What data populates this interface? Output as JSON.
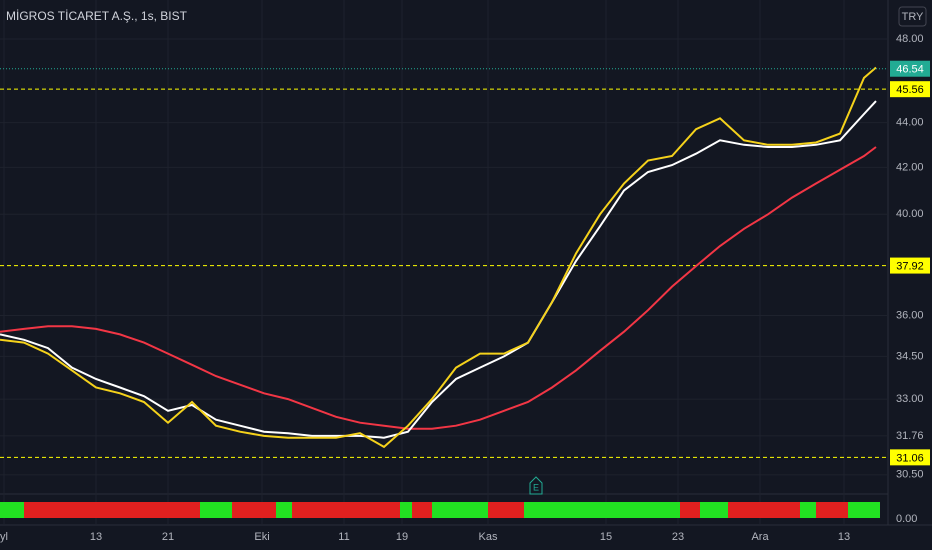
{
  "chart_data": {
    "type": "line",
    "title": "MİGROS TİCARET A.Ş., 1s, BIST",
    "currency": "TRY",
    "log_scale": true,
    "grid": true,
    "x": [
      0,
      6,
      12,
      18,
      24,
      30,
      36,
      42,
      48,
      54,
      60,
      66,
      72,
      78,
      84,
      90,
      96,
      102,
      108,
      114,
      120,
      126,
      132,
      138,
      144,
      150,
      156,
      162,
      168,
      174,
      180,
      186,
      192,
      198,
      204,
      210,
      216,
      219
    ],
    "xlim": [
      0,
      222
    ],
    "xticks": [
      {
        "value": 1,
        "label": "yl"
      },
      {
        "value": 24,
        "label": "13"
      },
      {
        "value": 42,
        "label": "21"
      },
      {
        "value": 65.5,
        "label": "Eki"
      },
      {
        "value": 86,
        "label": "11"
      },
      {
        "value": 100.5,
        "label": "19"
      },
      {
        "value": 122,
        "label": "Kas"
      },
      {
        "value": 151.5,
        "label": "15"
      },
      {
        "value": 169.5,
        "label": "23"
      },
      {
        "value": 190,
        "label": "Ara"
      },
      {
        "value": 211,
        "label": "13"
      }
    ],
    "ylim": [
      29.96,
      49.99
    ],
    "yticks": [
      {
        "value": 48,
        "label": "48.00"
      },
      {
        "value": 44,
        "label": "44.00"
      },
      {
        "value": 42,
        "label": "42.00"
      },
      {
        "value": 40,
        "label": "40.00"
      },
      {
        "value": 36,
        "label": "36.00"
      },
      {
        "value": 34.5,
        "label": "34.50"
      },
      {
        "value": 33,
        "label": "33.00"
      },
      {
        "value": 31.76,
        "label": "31.76"
      },
      {
        "value": 30.5,
        "label": "30.50"
      }
    ],
    "series": [
      {
        "color": "#f23645",
        "values": [
          35.4,
          35.5,
          35.6,
          35.6,
          35.5,
          35.3,
          35.0,
          34.6,
          34.2,
          33.8,
          33.5,
          33.2,
          33.0,
          32.7,
          32.4,
          32.2,
          32.1,
          32.0,
          32.0,
          32.1,
          32.3,
          32.6,
          32.9,
          33.4,
          34.0,
          34.7,
          35.4,
          36.2,
          37.1,
          37.9,
          38.7,
          39.4,
          40.0,
          40.7,
          41.3,
          41.9,
          42.5,
          42.9
        ]
      },
      {
        "color": "#ffffff",
        "values": [
          35.3,
          35.1,
          34.8,
          34.1,
          33.7,
          33.4,
          33.1,
          32.6,
          32.8,
          32.3,
          32.1,
          31.9,
          31.85,
          31.76,
          31.76,
          31.76,
          31.7,
          31.9,
          32.9,
          33.7,
          34.1,
          34.5,
          35.0,
          36.5,
          38.1,
          39.5,
          41.0,
          41.8,
          42.1,
          42.6,
          43.2,
          43.0,
          42.9,
          42.9,
          43.0,
          43.2,
          44.4,
          45.0
        ]
      },
      {
        "color": "#f5d21b",
        "values": [
          35.1,
          35.0,
          34.6,
          34.0,
          33.4,
          33.2,
          32.9,
          32.2,
          32.9,
          32.1,
          31.9,
          31.76,
          31.7,
          31.7,
          31.7,
          31.85,
          31.4,
          32.1,
          33.0,
          34.1,
          34.6,
          34.6,
          35.0,
          36.5,
          38.4,
          40.0,
          41.3,
          42.3,
          42.5,
          43.7,
          44.2,
          43.2,
          43.0,
          43.0,
          43.1,
          43.5,
          46.1,
          46.6
        ]
      }
    ],
    "levels": [
      45.56,
      37.92,
      31.06
    ],
    "level_color": "#ffff00",
    "last_price": 46.54,
    "last_price_color": "#22ab94",
    "event_marker": {
      "x": 134,
      "label": "E"
    },
    "signal": {
      "bounds": [
        0,
        6,
        50,
        58,
        69,
        73,
        100,
        103,
        108,
        122,
        131,
        170,
        175,
        182,
        200,
        204,
        212,
        220
      ],
      "colors": [
        "#22e022",
        "#e0201f",
        "#22e022",
        "#e0201f",
        "#22e022",
        "#e0201f",
        "#22e022",
        "#e0201f",
        "#22e022",
        "#e0201f",
        "#22e022",
        "#e0201f",
        "#22e022",
        "#e0201f",
        "#22e022",
        "#e0201f",
        "#22e022"
      ],
      "ylim": [
        0,
        1
      ],
      "yticks": [
        {
          "value": 0,
          "label": "0.00"
        }
      ]
    }
  }
}
